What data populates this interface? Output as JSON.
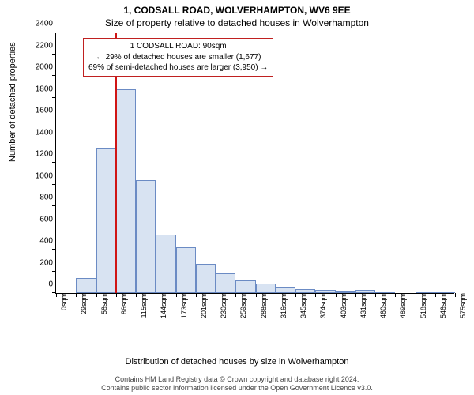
{
  "title_main": "1, CODSALL ROAD, WOLVERHAMPTON, WV6 9EE",
  "title_sub": "Size of property relative to detached houses in Wolverhampton",
  "chart": {
    "type": "histogram",
    "ylabel": "Number of detached properties",
    "xlabel": "Distribution of detached houses by size in Wolverhampton",
    "ylim": [
      0,
      2400
    ],
    "ytick_step": 200,
    "xticks": [
      "0sqm",
      "29sqm",
      "58sqm",
      "86sqm",
      "115sqm",
      "144sqm",
      "173sqm",
      "201sqm",
      "230sqm",
      "259sqm",
      "288sqm",
      "316sqm",
      "345sqm",
      "374sqm",
      "403sqm",
      "431sqm",
      "460sqm",
      "489sqm",
      "518sqm",
      "546sqm",
      "575sqm"
    ],
    "x_range": [
      0,
      600
    ],
    "bars": [
      {
        "x0": 30,
        "x1": 60,
        "count": 140
      },
      {
        "x0": 60,
        "x1": 90,
        "count": 1340
      },
      {
        "x0": 90,
        "x1": 120,
        "count": 1880
      },
      {
        "x0": 120,
        "x1": 150,
        "count": 1040
      },
      {
        "x0": 150,
        "x1": 180,
        "count": 540
      },
      {
        "x0": 180,
        "x1": 210,
        "count": 420
      },
      {
        "x0": 210,
        "x1": 240,
        "count": 270
      },
      {
        "x0": 240,
        "x1": 270,
        "count": 180
      },
      {
        "x0": 270,
        "x1": 300,
        "count": 120
      },
      {
        "x0": 300,
        "x1": 330,
        "count": 90
      },
      {
        "x0": 330,
        "x1": 360,
        "count": 60
      },
      {
        "x0": 360,
        "x1": 390,
        "count": 40
      },
      {
        "x0": 390,
        "x1": 420,
        "count": 30
      },
      {
        "x0": 420,
        "x1": 450,
        "count": 25
      },
      {
        "x0": 450,
        "x1": 480,
        "count": 30
      },
      {
        "x0": 480,
        "x1": 510,
        "count": 15
      },
      {
        "x0": 540,
        "x1": 570,
        "count": 10
      },
      {
        "x0": 570,
        "x1": 600,
        "count": 10
      }
    ],
    "bar_fill": "#d8e3f2",
    "bar_border": "#6b8bc4",
    "marker": {
      "x": 90,
      "color": "#d01515"
    },
    "annotation": {
      "lines": [
        "1 CODSALL ROAD: 90sqm",
        "← 29% of detached houses are smaller (1,677)",
        "69% of semi-detached houses are larger (3,950) →"
      ],
      "border_color": "#c02020"
    },
    "background_color": "#ffffff",
    "axis_color": "#000000"
  },
  "footer": {
    "line1": "Contains HM Land Registry data © Crown copyright and database right 2024.",
    "line2": "Contains public sector information licensed under the Open Government Licence v3.0."
  }
}
